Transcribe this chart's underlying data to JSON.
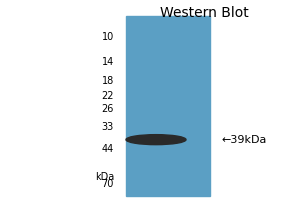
{
  "title": "Western Blot",
  "bg_color": "#ffffff",
  "gel_color": "#5b9fc4",
  "ladder_labels": [
    "kDa",
    "70",
    "44",
    "33",
    "26",
    "22",
    "18",
    "14",
    "10"
  ],
  "ladder_values": [
    75,
    70,
    44,
    33,
    26,
    22,
    18,
    14,
    10
  ],
  "band_label": "←39kDa",
  "band_color": "#2a2a2a",
  "ymin": 8,
  "ymax": 78,
  "title_fontsize": 10,
  "ladder_fontsize": 7,
  "annotation_fontsize": 8
}
